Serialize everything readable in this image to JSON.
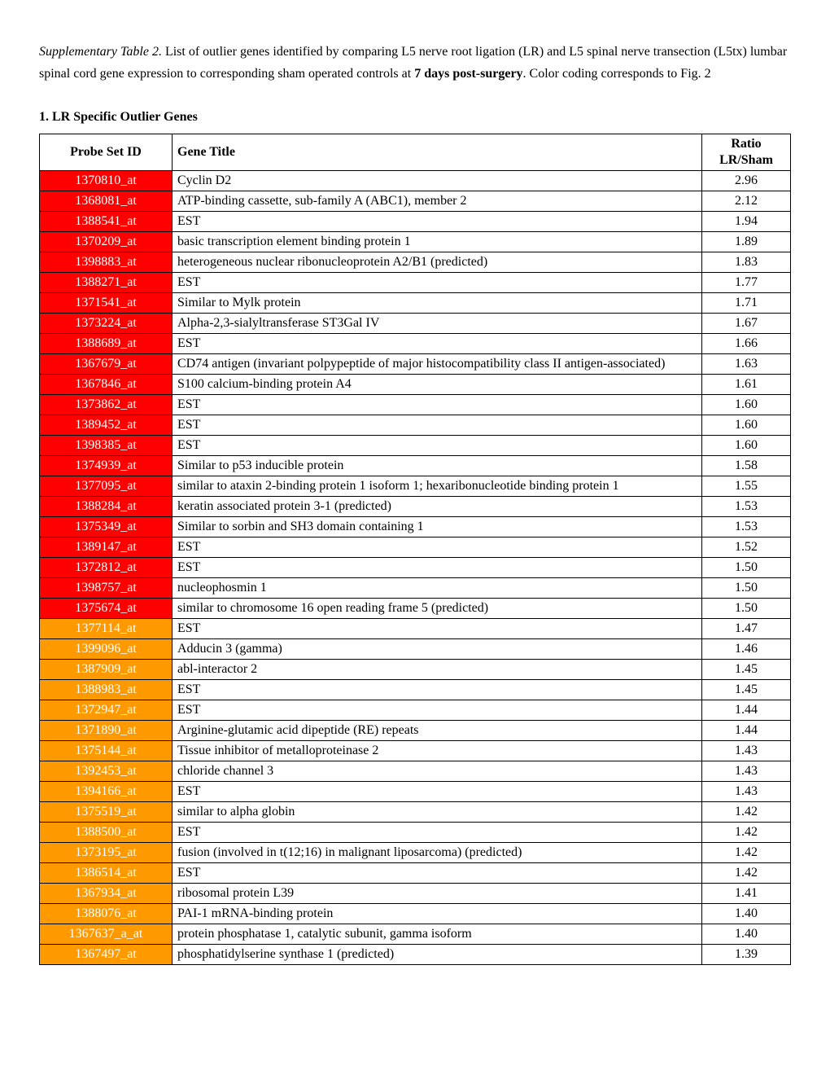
{
  "caption": {
    "title_label": "Supplementary Table 2.",
    "body_part1": " List of outlier genes identified by comparing L5 nerve root ligation (LR) and L5 spinal nerve transection (L5tx) lumbar spinal cord gene expression to corresponding sham operated controls at ",
    "bold1": "7 days post-surgery",
    "body_part2": ".  Color coding corresponds to Fig. 2"
  },
  "section1": {
    "heading": "1. LR Specific Outlier Genes",
    "columns": {
      "probe": "Probe Set ID",
      "title": "Gene Title",
      "ratio_line1": "Ratio",
      "ratio_line2": "LR/Sham"
    },
    "colors": {
      "red": "#ff0000",
      "orange": "#ff9900"
    },
    "rows": [
      {
        "probe": "1370810_at",
        "title": "Cyclin D2",
        "ratio": "2.96",
        "color": "red"
      },
      {
        "probe": "1368081_at",
        "title": "ATP-binding cassette, sub-family A (ABC1), member 2",
        "ratio": "2.12",
        "color": "red"
      },
      {
        "probe": "1388541_at",
        "title": "EST",
        "ratio": "1.94",
        "color": "red"
      },
      {
        "probe": "1370209_at",
        "title": "basic transcription element binding protein 1",
        "ratio": "1.89",
        "color": "red"
      },
      {
        "probe": "1398883_at",
        "title": "heterogeneous nuclear ribonucleoprotein A2/B1 (predicted)",
        "ratio": "1.83",
        "color": "red"
      },
      {
        "probe": "1388271_at",
        "title": "EST",
        "ratio": "1.77",
        "color": "red"
      },
      {
        "probe": "1371541_at",
        "title": "Similar to Mylk protein",
        "ratio": "1.71",
        "color": "red"
      },
      {
        "probe": "1373224_at",
        "title": "Alpha-2,3-sialyltransferase ST3Gal IV",
        "ratio": "1.67",
        "color": "red"
      },
      {
        "probe": "1388689_at",
        "title": "EST",
        "ratio": "1.66",
        "color": "red"
      },
      {
        "probe": "1367679_at",
        "title": "CD74 antigen (invariant polpypeptide of major histocompatibility class II antigen-associated)",
        "ratio": "1.63",
        "color": "red"
      },
      {
        "probe": "1367846_at",
        "title": "S100 calcium-binding protein A4",
        "ratio": "1.61",
        "color": "red"
      },
      {
        "probe": "1373862_at",
        "title": "EST",
        "ratio": "1.60",
        "color": "red"
      },
      {
        "probe": "1389452_at",
        "title": "EST",
        "ratio": "1.60",
        "color": "red"
      },
      {
        "probe": "1398385_at",
        "title": "EST",
        "ratio": "1.60",
        "color": "red"
      },
      {
        "probe": "1374939_at",
        "title": "Similar to p53 inducible protein",
        "ratio": "1.58",
        "color": "red"
      },
      {
        "probe": "1377095_at",
        "title": "similar to ataxin 2-binding protein 1 isoform 1; hexaribonucleotide binding protein 1",
        "ratio": "1.55",
        "color": "red"
      },
      {
        "probe": "1388284_at",
        "title": "keratin associated protein 3-1 (predicted)",
        "ratio": "1.53",
        "color": "red"
      },
      {
        "probe": "1375349_at",
        "title": "Similar to sorbin and SH3 domain containing 1",
        "ratio": "1.53",
        "color": "red"
      },
      {
        "probe": "1389147_at",
        "title": "EST",
        "ratio": "1.52",
        "color": "red"
      },
      {
        "probe": "1372812_at",
        "title": "EST",
        "ratio": "1.50",
        "color": "red"
      },
      {
        "probe": "1398757_at",
        "title": "nucleophosmin 1",
        "ratio": "1.50",
        "color": "red"
      },
      {
        "probe": "1375674_at",
        "title": "similar to chromosome 16 open reading frame 5 (predicted)",
        "ratio": "1.50",
        "color": "red"
      },
      {
        "probe": "1377114_at",
        "title": "EST",
        "ratio": "1.47",
        "color": "orange"
      },
      {
        "probe": "1399096_at",
        "title": "Adducin 3 (gamma)",
        "ratio": "1.46",
        "color": "orange"
      },
      {
        "probe": "1387909_at",
        "title": "abl-interactor 2",
        "ratio": "1.45",
        "color": "orange"
      },
      {
        "probe": "1388983_at",
        "title": "EST",
        "ratio": "1.45",
        "color": "orange"
      },
      {
        "probe": "1372947_at",
        "title": "EST",
        "ratio": "1.44",
        "color": "orange"
      },
      {
        "probe": "1371890_at",
        "title": "Arginine-glutamic acid dipeptide (RE) repeats",
        "ratio": "1.44",
        "color": "orange"
      },
      {
        "probe": "1375144_at",
        "title": "Tissue inhibitor of metalloproteinase 2",
        "ratio": "1.43",
        "color": "orange"
      },
      {
        "probe": "1392453_at",
        "title": "chloride channel 3",
        "ratio": "1.43",
        "color": "orange"
      },
      {
        "probe": "1394166_at",
        "title": "EST",
        "ratio": "1.43",
        "color": "orange"
      },
      {
        "probe": "1375519_at",
        "title": "similar to alpha globin",
        "ratio": "1.42",
        "color": "orange"
      },
      {
        "probe": "1388500_at",
        "title": "EST",
        "ratio": "1.42",
        "color": "orange"
      },
      {
        "probe": "1373195_at",
        "title": "fusion (involved in t(12;16) in malignant liposarcoma) (predicted)",
        "ratio": "1.42",
        "color": "orange"
      },
      {
        "probe": "1386514_at",
        "title": "EST",
        "ratio": "1.42",
        "color": "orange"
      },
      {
        "probe": "1367934_at",
        "title": "ribosomal protein L39",
        "ratio": "1.41",
        "color": "orange"
      },
      {
        "probe": "1388076_at",
        "title": "PAI-1 mRNA-binding protein",
        "ratio": "1.40",
        "color": "orange"
      },
      {
        "probe": "1367637_a_at",
        "title": "protein phosphatase 1, catalytic subunit, gamma isoform",
        "ratio": "1.40",
        "color": "orange"
      },
      {
        "probe": "1367497_at",
        "title": "phosphatidylserine synthase 1 (predicted)",
        "ratio": "1.39",
        "color": "orange"
      }
    ]
  }
}
